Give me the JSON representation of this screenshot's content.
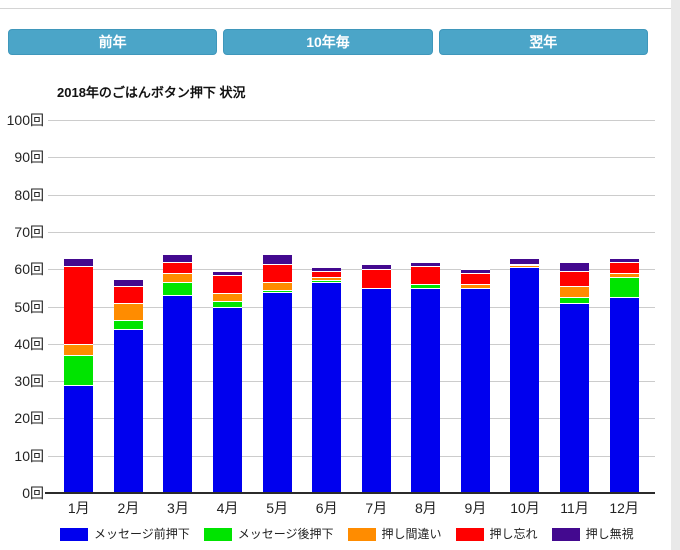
{
  "nav": {
    "buttons": [
      {
        "id": "prev-year",
        "label": "前年"
      },
      {
        "id": "decade",
        "label": "10年毎"
      },
      {
        "id": "next-year",
        "label": "翌年"
      }
    ],
    "button_color": "#4ba5c8",
    "button_border_color": "#3f97bb"
  },
  "chart": {
    "title": "2018年のごはんボタン押下 状況"
  },
  "chart_data": {
    "type": "bar",
    "stacked": true,
    "title": "2018年のごはんボタン押下 状況",
    "categories": [
      "1月",
      "2月",
      "3月",
      "4月",
      "5月",
      "6月",
      "7月",
      "8月",
      "9月",
      "10月",
      "11月",
      "12月"
    ],
    "series": [
      {
        "name": "メッセージ前押下",
        "color": "#0000ee",
        "values": [
          29,
          44,
          53,
          50,
          54,
          56.5,
          55,
          55,
          55,
          60.5,
          51,
          52.5
        ]
      },
      {
        "name": "メッセージ後押下",
        "color": "#00e400",
        "values": [
          8,
          2.5,
          3.5,
          1.5,
          0.5,
          0.5,
          0,
          1,
          0,
          0,
          1.5,
          5.5
        ]
      },
      {
        "name": "押し間違い",
        "color": "#ff8c00",
        "values": [
          3,
          4.5,
          2.5,
          2,
          2,
          1,
          0,
          0,
          1,
          0.5,
          3,
          1
        ]
      },
      {
        "name": "押し忘れ",
        "color": "#ff0000",
        "values": [
          21,
          4.5,
          3,
          5,
          5,
          1.5,
          5,
          5,
          3,
          0.5,
          4,
          3
        ]
      },
      {
        "name": "押し無視",
        "color": "#43098f",
        "values": [
          2,
          2,
          2,
          1,
          2.5,
          1,
          1.5,
          1,
          1,
          1.5,
          2.5,
          1
        ]
      }
    ],
    "totals": [
      63,
      57.5,
      64,
      59.5,
      64,
      60.5,
      61.5,
      62,
      60,
      63,
      62,
      63
    ],
    "ylabel_unit": "回",
    "y_ticks": [
      0,
      10,
      20,
      30,
      40,
      50,
      60,
      70,
      80,
      90,
      100
    ],
    "y_tick_labels": [
      "0回",
      "10回",
      "20回",
      "30回",
      "40回",
      "50回",
      "60回",
      "70回",
      "80回",
      "90回",
      "100回"
    ],
    "ylim": [
      0,
      100
    ],
    "grid": true,
    "gridline_color": "#cccccc",
    "axis_color": "#2b2b2b",
    "legend_position": "bottom"
  }
}
